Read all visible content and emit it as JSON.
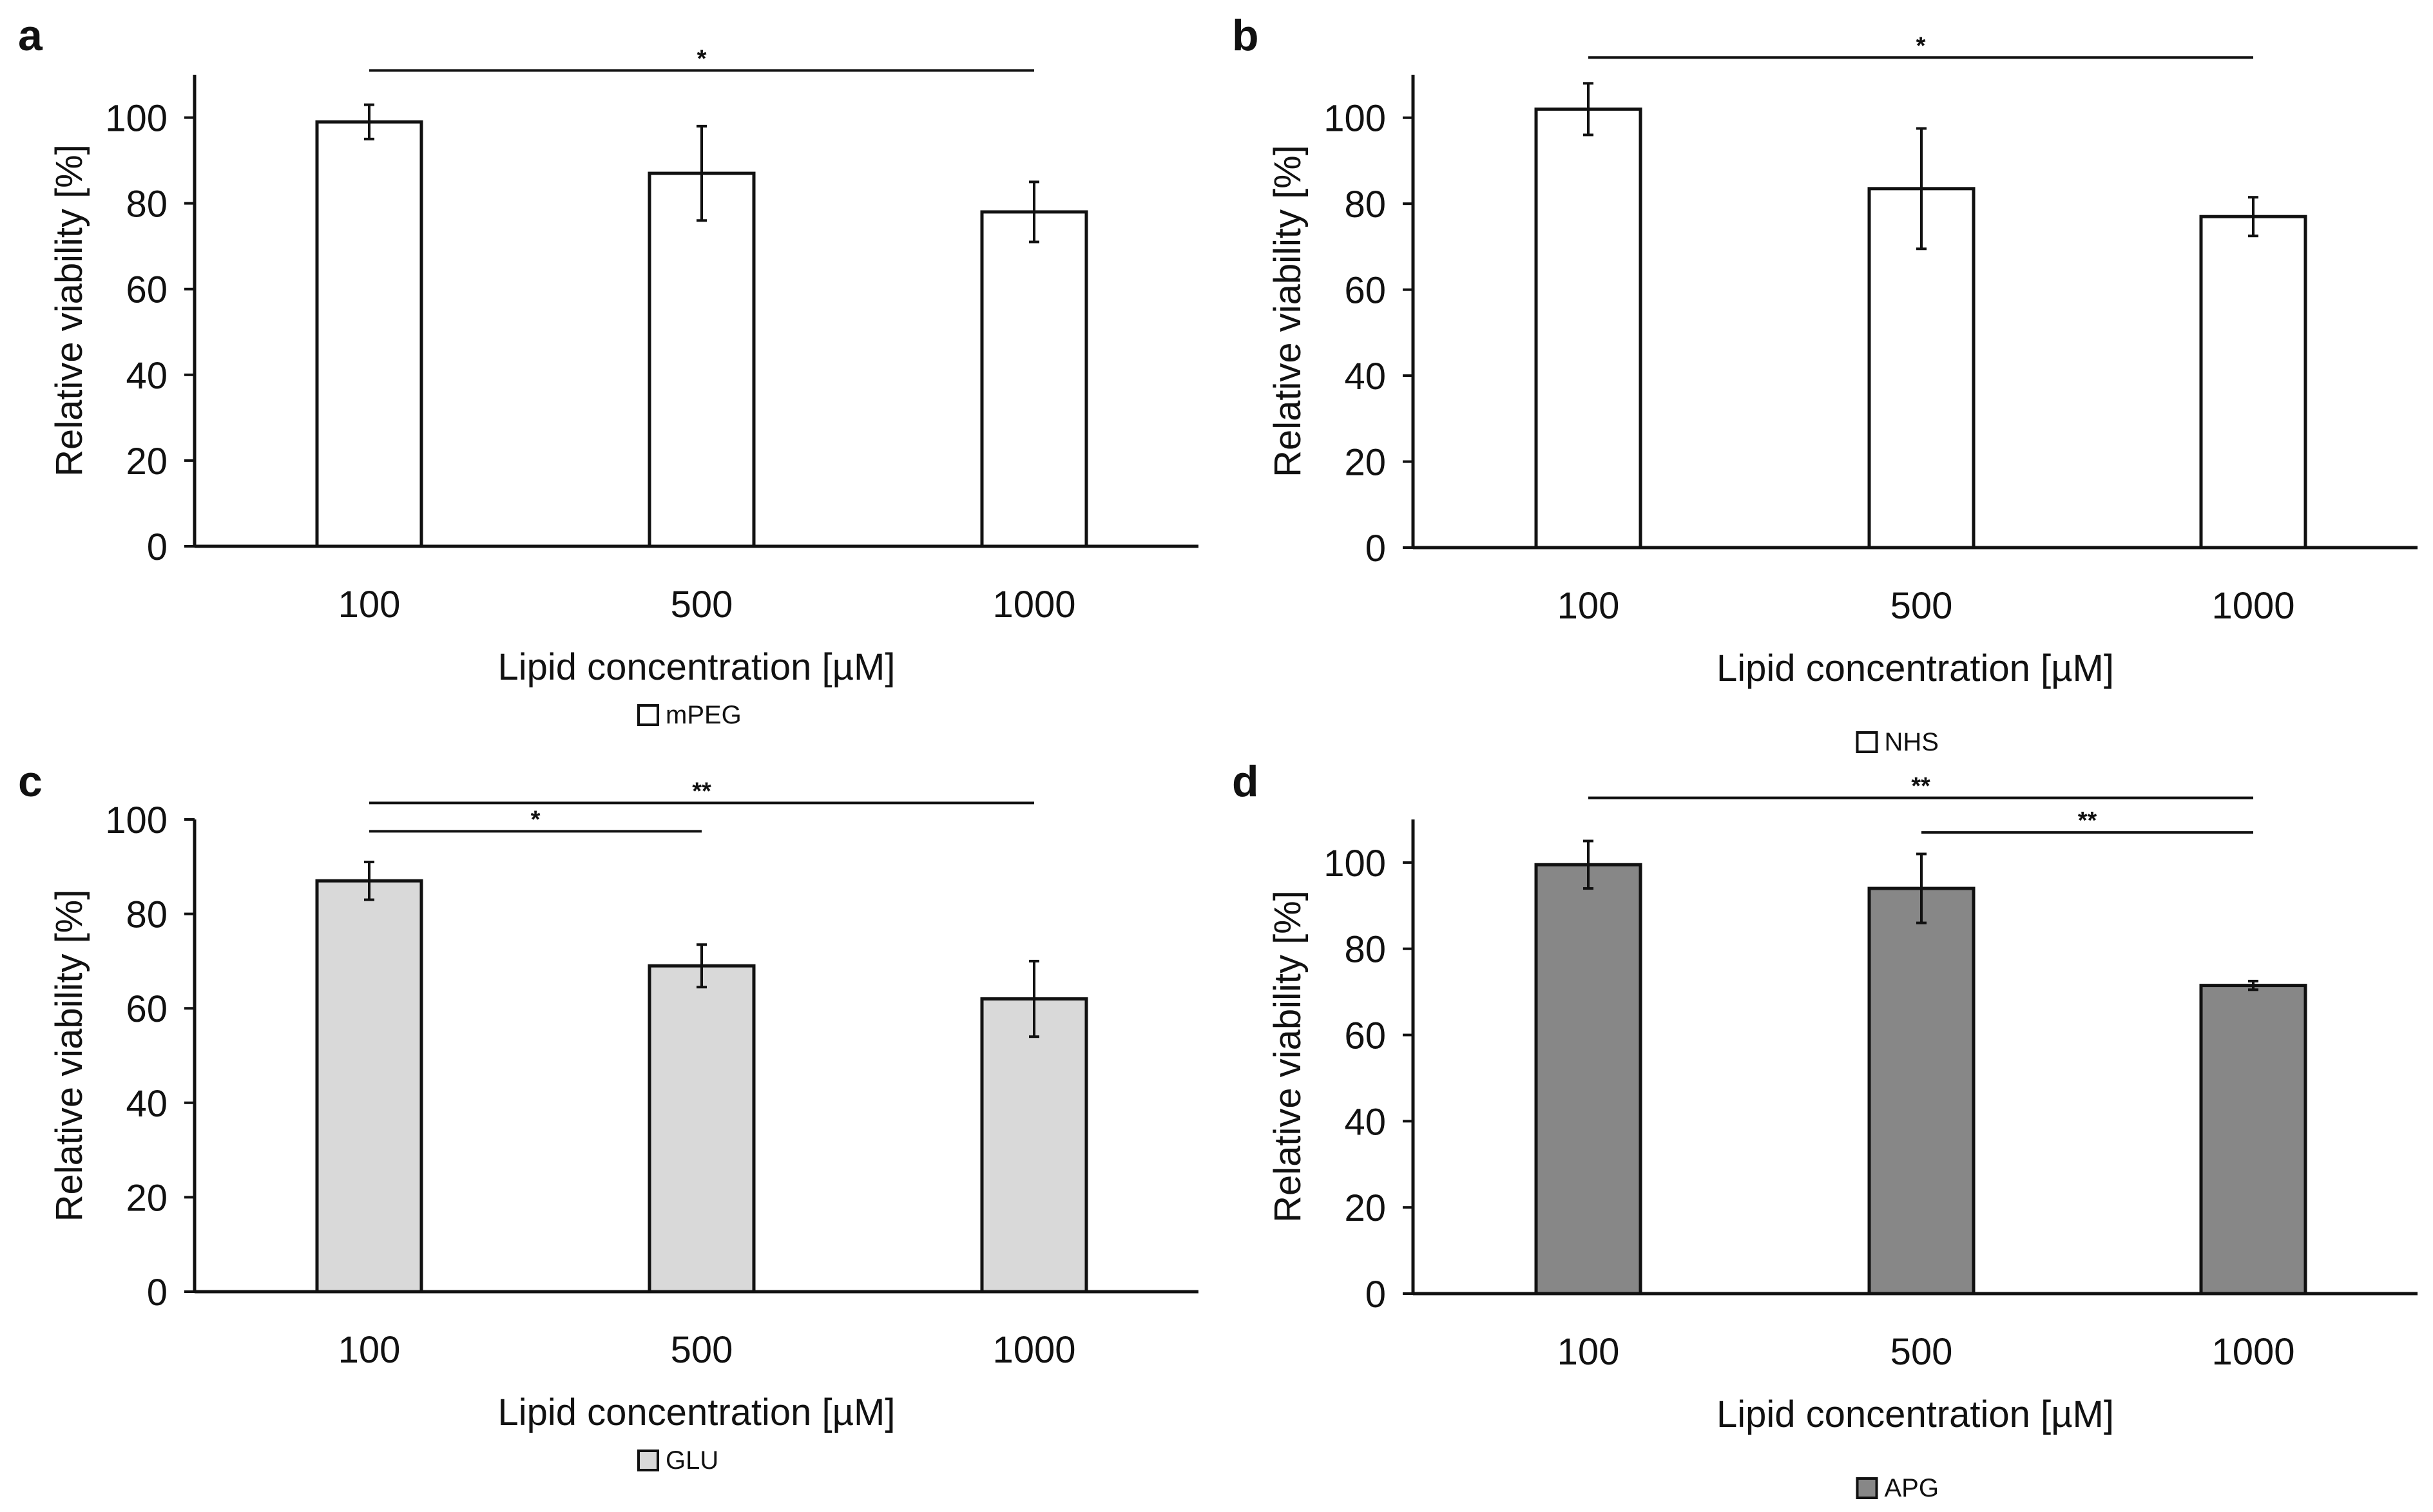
{
  "chart_data": [
    {
      "panel": "a",
      "type": "bar",
      "xlabel": "Lipid concentration [µM]",
      "ylabel": "Relative viability [%]",
      "categories": [
        "100",
        "500",
        "1000"
      ],
      "series": [
        {
          "name": "mPEG",
          "values": [
            99,
            87,
            78
          ],
          "errors": [
            4,
            11,
            7
          ]
        }
      ],
      "fill": "#ffffff",
      "ylim": [
        0,
        110
      ],
      "yticks": [
        0,
        20,
        40,
        60,
        80,
        100
      ],
      "legend": "bottom-center",
      "significance": [
        {
          "from": 0,
          "to": 2,
          "label": "*",
          "level": 111
        }
      ]
    },
    {
      "panel": "b",
      "type": "bar",
      "xlabel": "Lipid concentration [µM]",
      "ylabel": "Relative viability [%]",
      "categories": [
        "100",
        "500",
        "1000"
      ],
      "series": [
        {
          "name": "NHS",
          "values": [
            102,
            83.5,
            77
          ],
          "errors": [
            6,
            14,
            4.5
          ]
        }
      ],
      "fill": "#ffffff",
      "ylim": [
        0,
        110
      ],
      "yticks": [
        0,
        20,
        40,
        60,
        80,
        100
      ],
      "legend": "bottom-center",
      "significance": [
        {
          "from": 0,
          "to": 2,
          "label": "*",
          "level": 114
        }
      ]
    },
    {
      "panel": "c",
      "type": "bar",
      "xlabel": "Lipid concentration [µM]",
      "ylabel": "Relative viability [%]",
      "categories": [
        "100",
        "500",
        "1000"
      ],
      "series": [
        {
          "name": "GLU",
          "values": [
            87,
            69,
            62
          ],
          "errors": [
            4,
            4.5,
            8
          ]
        }
      ],
      "fill": "#d9d9d9",
      "ylim": [
        0,
        100
      ],
      "yticks": [
        0,
        20,
        40,
        60,
        80,
        100
      ],
      "legend": "bottom-center",
      "significance": [
        {
          "from": 0,
          "to": 1,
          "label": "*",
          "level": 97.5
        },
        {
          "from": 0,
          "to": 2,
          "label": "**",
          "level": 103.5
        }
      ]
    },
    {
      "panel": "d",
      "type": "bar",
      "xlabel": "Lipid concentration [µM]",
      "ylabel": "Relative viability [%]",
      "categories": [
        "100",
        "500",
        "1000"
      ],
      "series": [
        {
          "name": "APG",
          "values": [
            99.5,
            94,
            71.5
          ],
          "errors": [
            5.5,
            8,
            1
          ]
        }
      ],
      "fill": "#878787",
      "ylim": [
        0,
        110
      ],
      "yticks": [
        0,
        20,
        40,
        60,
        80,
        100
      ],
      "legend": "bottom-center",
      "significance": [
        {
          "from": 0,
          "to": 2,
          "label": "**",
          "level": 115
        },
        {
          "from": 1,
          "to": 2,
          "label": "**",
          "level": 107
        }
      ]
    }
  ]
}
